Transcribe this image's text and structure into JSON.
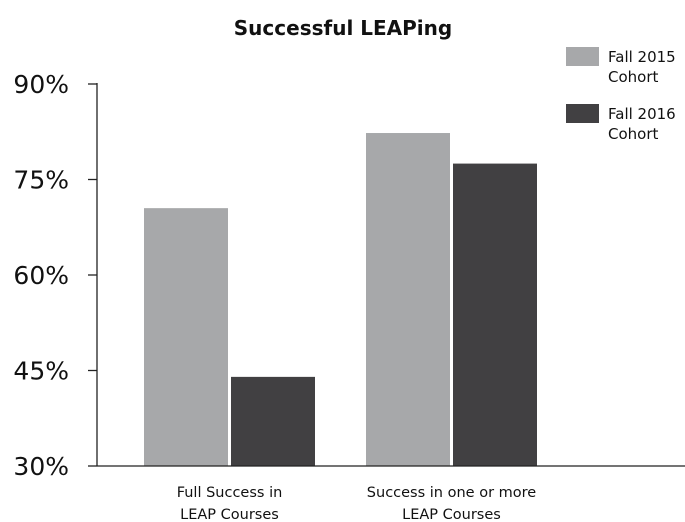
{
  "chart_data": {
    "type": "bar",
    "title": "Successful LEAPing",
    "categories": [
      [
        "Full Success in",
        "LEAP Courses"
      ],
      [
        "Success in one or more",
        "LEAP Courses"
      ]
    ],
    "series": [
      {
        "name": [
          "Fall 2015",
          "Cohort"
        ],
        "color": "#a7a8aa",
        "values": [
          70.5,
          82.3
        ]
      },
      {
        "name": [
          "Fall 2016",
          "Cohort"
        ],
        "color": "#414042",
        "values": [
          44.0,
          77.5
        ]
      }
    ],
    "yticks": [
      "90%",
      "75%",
      "60%",
      "45%",
      "30%"
    ],
    "ytick_values": [
      90,
      75,
      60,
      45,
      30
    ],
    "ylim": [
      30,
      90
    ],
    "grid": false,
    "legend_position": "top-right"
  }
}
